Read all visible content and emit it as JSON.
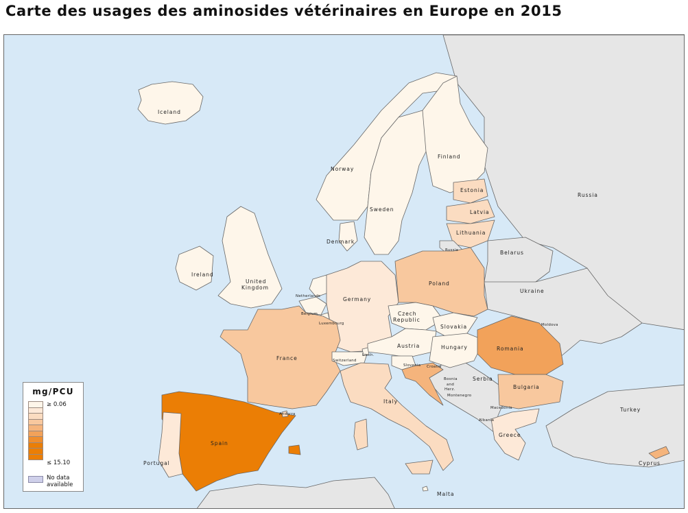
{
  "title": "Carte des usages des aminosides vétérinaires en Europe en 2015",
  "colors": {
    "sea": "#d7e9f7",
    "non_eu": "#e6e6e6",
    "border": "#666666",
    "scale": [
      "#fef6ea",
      "#fde9d8",
      "#fbdcc1",
      "#f8c89e",
      "#f5b47c",
      "#f2a25a",
      "#ef8e2e",
      "#eb7e05"
    ],
    "no_data": "#cfd0ea"
  },
  "legend": {
    "title": "mg/PCU",
    "max_label": "≥ 0.06",
    "min_label": "≤ 15.10",
    "no_data_line1": "No data",
    "no_data_line2": "available"
  },
  "labels": {
    "iceland": "Iceland",
    "norway": "Norway",
    "sweden": "Sweden",
    "finland": "Finland",
    "russia": "Russia",
    "estonia": "Estonia",
    "latvia": "Latvia",
    "lithuania": "Lithuania",
    "russia_kal": "Russia",
    "denmark": "Denmark",
    "ireland": "Ireland",
    "uk1": "United",
    "uk2": "Kingdom",
    "netherlands": "Netherlands",
    "belgium": "Belgium",
    "luxembourg": "Luxembourg",
    "germany": "Germany",
    "poland": "Poland",
    "belarus": "Belarus",
    "ukraine": "Ukraine",
    "czech1": "Czech",
    "czech2": "Republic",
    "slovakia": "Slovakia",
    "moldova": "Moldova",
    "austria": "Austria",
    "hungary": "Hungary",
    "romania": "Romania",
    "france": "France",
    "switzerland": "Switzerland",
    "liech": "Liech.",
    "slovenia": "Slovenia",
    "croatia": "Croatia",
    "bosnia1": "Bosnia",
    "bosnia2": "and",
    "bosnia3": "Herz.",
    "serbia": "Serbia",
    "bulgaria": "Bulgaria",
    "montenegro": "Montenegro",
    "macedonia": "Macedonia",
    "albania": "Albania",
    "italy": "Italy",
    "greece": "Greece",
    "turkey": "Turkey",
    "andorra": "Andorra",
    "spain": "Spain",
    "portugal": "Portugal",
    "malta": "Malta",
    "cyprus": "Cyprus"
  }
}
